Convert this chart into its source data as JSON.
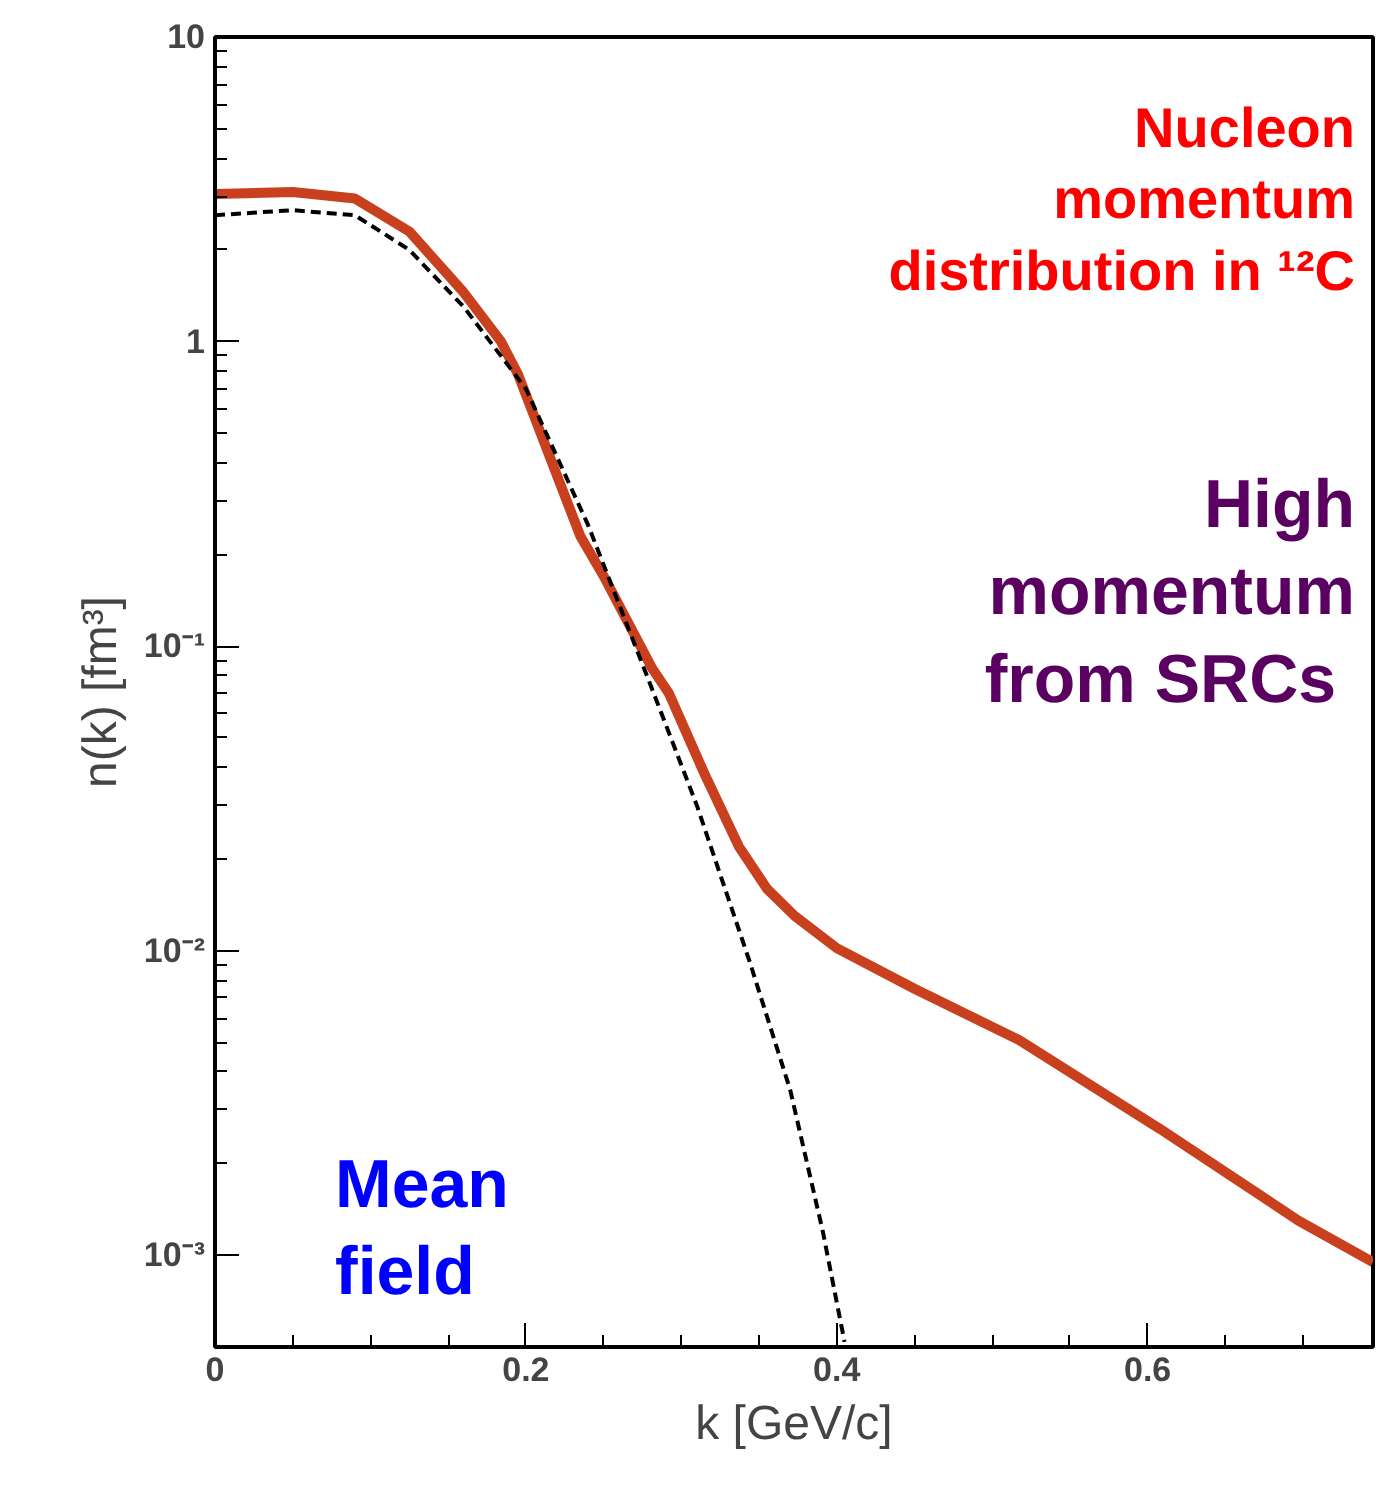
{
  "chart_data": {
    "type": "line",
    "xlabel": "k [GeV/c]",
    "ylabel": "n(k) [fm³]",
    "log": "y",
    "xlim": [
      0,
      0.745
    ],
    "ylim": [
      0.0005,
      10
    ],
    "xticks": [
      0,
      0.2,
      0.4,
      0.6
    ],
    "yticks": [
      {
        "value": 0.001,
        "label": "10⁻³"
      },
      {
        "value": 0.01,
        "label": "10⁻²"
      },
      {
        "value": 0.1,
        "label": "10⁻¹"
      },
      1,
      10
    ],
    "grid": false,
    "annotations": [
      "Nucleon\nmomentum\ndistribution in ¹²C",
      "High\nmomentum\nfrom  SRCs",
      "Mean\nfield"
    ],
    "series": [
      {
        "color": "#c8401e",
        "line_style": "solid",
        "x": [
          0,
          0.05,
          0.09,
          0.125,
          0.16,
          0.184,
          0.195,
          0.235,
          0.25,
          0.281,
          0.292,
          0.315,
          0.337,
          0.355,
          0.373,
          0.4,
          0.45,
          0.517,
          0.608,
          0.697,
          0.745
        ],
        "values": [
          3.05,
          3.1,
          2.95,
          2.3,
          1.45,
          1.0,
          0.78,
          0.23,
          0.17,
          0.085,
          0.07,
          0.038,
          0.022,
          0.016,
          0.013,
          0.0102,
          0.0075,
          0.0051,
          0.0026,
          0.0013,
          0.00095
        ]
      },
      {
        "color": "#000000",
        "line_style": "dashed",
        "x": [
          0,
          0.05,
          0.09,
          0.125,
          0.16,
          0.2,
          0.24,
          0.28,
          0.31,
          0.344,
          0.37,
          0.391,
          0.405
        ],
        "values": [
          2.6,
          2.7,
          2.6,
          2.0,
          1.3,
          0.7,
          0.25,
          0.075,
          0.03,
          0.0092,
          0.0035,
          0.0012,
          0.00052
        ]
      }
    ]
  }
}
